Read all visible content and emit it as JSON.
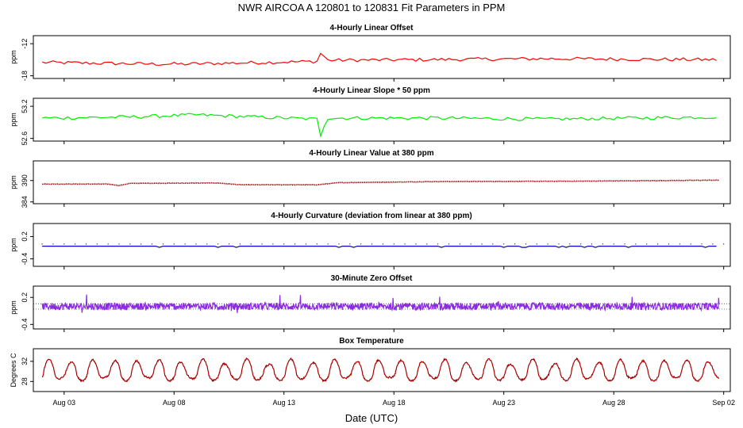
{
  "title": "NWR   AIRCOA A   120801 to 120831   Fit Parameters in PPM",
  "xlabel": "Date (UTC)",
  "colors": {
    "panel1": "#ff0000",
    "panel2": "#00ee00",
    "panel3": "#990000",
    "panel4": "#0000cc",
    "panel5": "#8a2be2",
    "panel6": "#aa0000"
  },
  "chart_data": {
    "type": "line",
    "x_range_days": [
      31.6,
      63.3
    ],
    "x_ticks": [
      {
        "day": 33,
        "label": "Aug 03"
      },
      {
        "day": 38,
        "label": "Aug 08"
      },
      {
        "day": 43,
        "label": "Aug 13"
      },
      {
        "day": 48,
        "label": "Aug 18"
      },
      {
        "day": 53,
        "label": "Aug 23"
      },
      {
        "day": 58,
        "label": "Aug 28"
      },
      {
        "day": 63,
        "label": "Sep 02"
      }
    ],
    "data_x_range_days": [
      32.0,
      62.8
    ],
    "panels": [
      {
        "title": "4-Hourly Linear Offset",
        "ylabel": "ppm",
        "ylim": [
          -18.5,
          -10.5
        ],
        "yticks": [
          -18,
          -12
        ],
        "ytick_labels": [
          "-18",
          "-12"
        ],
        "style": "line",
        "series_levels": [
          {
            "day": 32.0,
            "value": -15.5
          },
          {
            "day": 37.0,
            "value": -15.8
          },
          {
            "day": 38.5,
            "value": -15.8
          },
          {
            "day": 44.6,
            "value": -15.3
          },
          {
            "day": 44.7,
            "value": -13.0
          },
          {
            "day": 44.9,
            "value": -15.1
          },
          {
            "day": 49.0,
            "value": -15.0
          },
          {
            "day": 55.0,
            "value": -14.8
          },
          {
            "day": 62.8,
            "value": -15.0
          }
        ]
      },
      {
        "title": "4-Hourly Linear Slope * 50 ppm",
        "ylabel": "ppm",
        "ylim": [
          52.55,
          53.35
        ],
        "yticks": [
          52.6,
          53.2
        ],
        "ytick_labels": [
          "52.6",
          "53.2"
        ],
        "style": "line",
        "series_levels": [
          {
            "day": 32.0,
            "value": 52.98
          },
          {
            "day": 36.0,
            "value": 53.0
          },
          {
            "day": 39.0,
            "value": 53.04
          },
          {
            "day": 44.5,
            "value": 52.96
          },
          {
            "day": 44.7,
            "value": 52.6
          },
          {
            "day": 44.9,
            "value": 52.98
          },
          {
            "day": 50.0,
            "value": 52.98
          },
          {
            "day": 55.0,
            "value": 52.96
          },
          {
            "day": 62.8,
            "value": 53.0
          }
        ]
      },
      {
        "title": "4-Hourly Linear Value at 380 ppm",
        "ylabel": "ppm",
        "ylim": [
          383.5,
          395.5
        ],
        "yticks": [
          384,
          390
        ],
        "ytick_labels": [
          "384",
          "390"
        ],
        "style": "dots",
        "series_levels": [
          {
            "day": 32.0,
            "value": 389.0
          },
          {
            "day": 35.0,
            "value": 389.0
          },
          {
            "day": 35.5,
            "value": 388.6
          },
          {
            "day": 36.0,
            "value": 389.2
          },
          {
            "day": 40.0,
            "value": 389.3
          },
          {
            "day": 41.0,
            "value": 388.8
          },
          {
            "day": 44.5,
            "value": 388.8
          },
          {
            "day": 45.5,
            "value": 389.4
          },
          {
            "day": 50.0,
            "value": 389.7
          },
          {
            "day": 56.0,
            "value": 389.8
          },
          {
            "day": 62.8,
            "value": 390.1
          }
        ]
      },
      {
        "title": "4-Hourly Curvature (deviation from linear at 380 ppm)",
        "ylabel": "ppm",
        "ylim": [
          -0.6,
          0.55
        ],
        "yticks": [
          -0.4,
          0.2
        ],
        "ytick_labels": [
          "-0.4",
          "0.2"
        ],
        "style": "flat",
        "series_levels": [
          {
            "day": 32.0,
            "value": -0.06
          },
          {
            "day": 62.8,
            "value": -0.06
          }
        ],
        "reference_level": 0.0
      },
      {
        "title": "30-Minute Zero Offset",
        "ylabel": "ppm",
        "ylim": [
          -0.5,
          0.45
        ],
        "yticks": [
          -0.4,
          0.2
        ],
        "ytick_labels": [
          "-0.4",
          "0.2"
        ],
        "style": "noisy",
        "series_levels": [
          {
            "day": 32.0,
            "value": 0.0
          },
          {
            "day": 62.8,
            "value": 0.0
          }
        ],
        "reference_lines": [
          0.06,
          -0.06
        ]
      },
      {
        "title": "Box Temperature",
        "ylabel": "Degrees C",
        "ylim": [
          26.0,
          34.5
        ],
        "yticks": [
          28,
          32
        ],
        "ytick_labels": [
          "28",
          "32"
        ],
        "style": "diurnal",
        "series_levels": [
          {
            "day": 32.0,
            "value": 30.0
          },
          {
            "day": 62.8,
            "value": 30.0
          }
        ],
        "diurnal_range": [
          27.5,
          33.0
        ]
      }
    ]
  }
}
